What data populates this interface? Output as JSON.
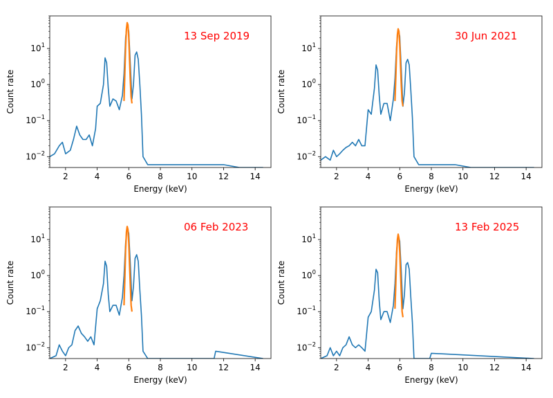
{
  "chart_data": [
    {
      "type": "line",
      "annotation": "13 Sep 2019",
      "xlabel": "Energy (keV)",
      "ylabel": "Count rate",
      "xlim": [
        1.0,
        15.0
      ],
      "ylim": [
        0.005,
        80
      ],
      "yscale": "log",
      "xticks": [
        2,
        4,
        6,
        8,
        10,
        12,
        14
      ],
      "yticks": [
        0.01,
        0.1,
        1,
        10
      ],
      "grid": false,
      "series": [
        {
          "color": "#1f77b4",
          "x": [
            1.0,
            1.3,
            1.6,
            1.8,
            2.0,
            2.3,
            2.5,
            2.7,
            2.9,
            3.1,
            3.3,
            3.5,
            3.7,
            3.9,
            4.0,
            4.2,
            4.4,
            4.5,
            4.6,
            4.7,
            4.8,
            5.0,
            5.2,
            5.4,
            5.6,
            5.7,
            5.8,
            5.9,
            6.0,
            6.1,
            6.2,
            6.3,
            6.4,
            6.5,
            6.6,
            6.7,
            6.8,
            6.9,
            7.2,
            7.5,
            8.0,
            9.0,
            10.0,
            11.0,
            12.0,
            13.0,
            14.5
          ],
          "y": [
            0.01,
            0.012,
            0.02,
            0.025,
            0.012,
            0.015,
            0.03,
            0.07,
            0.04,
            0.03,
            0.03,
            0.04,
            0.02,
            0.06,
            0.25,
            0.3,
            1.0,
            5.5,
            4.0,
            0.8,
            0.25,
            0.4,
            0.35,
            0.2,
            0.5,
            2.0,
            20,
            50,
            30,
            3.5,
            0.4,
            1.0,
            6.5,
            8.0,
            5.0,
            1.0,
            0.15,
            0.01,
            0.006,
            0.006,
            0.006,
            0.006,
            0.006,
            0.006,
            0.006,
            0.005,
            0.005
          ]
        },
        {
          "color": "#ff7f0e",
          "x": [
            5.7,
            5.75,
            5.8,
            5.85,
            5.9,
            5.95,
            6.0,
            6.05,
            6.1,
            6.15,
            6.2
          ],
          "y": [
            0.35,
            2.0,
            11,
            35,
            52,
            45,
            20,
            5,
            1.2,
            0.45,
            0.3
          ]
        }
      ]
    },
    {
      "type": "line",
      "annotation": "30 Jun 2021",
      "xlabel": "Energy (keV)",
      "ylabel": "Count rate",
      "xlim": [
        1.0,
        15.0
      ],
      "ylim": [
        0.005,
        80
      ],
      "yscale": "log",
      "xticks": [
        2,
        4,
        6,
        8,
        10,
        12,
        14
      ],
      "yticks": [
        0.01,
        0.1,
        1,
        10
      ],
      "grid": false,
      "series": [
        {
          "color": "#1f77b4",
          "x": [
            1.0,
            1.3,
            1.6,
            1.8,
            2.0,
            2.2,
            2.4,
            2.6,
            2.8,
            3.0,
            3.2,
            3.4,
            3.6,
            3.8,
            4.0,
            4.2,
            4.4,
            4.5,
            4.6,
            4.7,
            4.8,
            5.0,
            5.2,
            5.4,
            5.6,
            5.7,
            5.8,
            5.9,
            6.0,
            6.1,
            6.2,
            6.3,
            6.4,
            6.5,
            6.6,
            6.7,
            6.8,
            6.9,
            7.2,
            7.5,
            8.0,
            9.0,
            9.5,
            10.5,
            12.0,
            14.5
          ],
          "y": [
            0.008,
            0.01,
            0.008,
            0.015,
            0.01,
            0.012,
            0.015,
            0.018,
            0.02,
            0.025,
            0.02,
            0.03,
            0.02,
            0.02,
            0.2,
            0.15,
            0.8,
            3.5,
            2.5,
            0.5,
            0.15,
            0.3,
            0.3,
            0.1,
            0.4,
            1.5,
            12,
            35,
            22,
            2.5,
            0.25,
            0.6,
            4.0,
            5.0,
            3.5,
            0.7,
            0.12,
            0.01,
            0.006,
            0.006,
            0.006,
            0.006,
            0.006,
            0.005,
            0.005,
            0.005
          ]
        },
        {
          "color": "#ff7f0e",
          "x": [
            5.7,
            5.75,
            5.8,
            5.85,
            5.9,
            5.95,
            6.0,
            6.05,
            6.1,
            6.15,
            6.2
          ],
          "y": [
            0.35,
            1.6,
            8,
            24,
            35,
            30,
            13,
            3.5,
            0.9,
            0.35,
            0.25
          ]
        }
      ]
    },
    {
      "type": "line",
      "annotation": "06 Feb 2023",
      "xlabel": "Energy (keV)",
      "ylabel": "Count rate",
      "xlim": [
        1.0,
        15.0
      ],
      "ylim": [
        0.005,
        80
      ],
      "yscale": "log",
      "xticks": [
        2,
        4,
        6,
        8,
        10,
        12,
        14
      ],
      "yticks": [
        0.01,
        0.1,
        1,
        10
      ],
      "grid": false,
      "series": [
        {
          "color": "#1f77b4",
          "x": [
            1.0,
            1.4,
            1.6,
            1.8,
            2.0,
            2.2,
            2.4,
            2.6,
            2.8,
            3.0,
            3.2,
            3.4,
            3.6,
            3.8,
            4.0,
            4.2,
            4.4,
            4.5,
            4.6,
            4.7,
            4.8,
            5.0,
            5.2,
            5.4,
            5.6,
            5.7,
            5.8,
            5.9,
            6.0,
            6.1,
            6.2,
            6.3,
            6.4,
            6.5,
            6.6,
            6.7,
            6.8,
            6.9,
            7.2,
            7.5,
            8.0,
            11.4,
            11.5,
            14.5
          ],
          "y": [
            0.005,
            0.006,
            0.012,
            0.008,
            0.006,
            0.01,
            0.012,
            0.03,
            0.04,
            0.025,
            0.02,
            0.015,
            0.02,
            0.012,
            0.12,
            0.2,
            0.6,
            2.5,
            1.8,
            0.3,
            0.1,
            0.15,
            0.15,
            0.08,
            0.25,
            1.0,
            8,
            22,
            15,
            2.0,
            0.2,
            0.5,
            3.0,
            3.8,
            2.5,
            0.4,
            0.08,
            0.008,
            0.005,
            0.005,
            0.005,
            0.005,
            0.008,
            0.005
          ]
        },
        {
          "color": "#ff7f0e",
          "x": [
            5.7,
            5.75,
            5.8,
            5.85,
            5.9,
            5.95,
            6.0,
            6.05,
            6.1,
            6.15,
            6.2
          ],
          "y": [
            0.15,
            0.8,
            5,
            16,
            23,
            19,
            8,
            2.0,
            0.5,
            0.15,
            0.1
          ]
        }
      ]
    },
    {
      "type": "line",
      "annotation": "13 Feb 2025",
      "xlabel": "Energy (keV)",
      "ylabel": "Count rate",
      "xlim": [
        1.0,
        15.0
      ],
      "ylim": [
        0.005,
        80
      ],
      "yscale": "log",
      "xticks": [
        2,
        4,
        6,
        8,
        10,
        12,
        14
      ],
      "yticks": [
        0.01,
        0.1,
        1,
        10
      ],
      "grid": false,
      "series": [
        {
          "color": "#1f77b4",
          "x": [
            1.0,
            1.4,
            1.6,
            1.8,
            2.0,
            2.2,
            2.4,
            2.6,
            2.8,
            3.0,
            3.2,
            3.4,
            3.6,
            3.8,
            4.0,
            4.2,
            4.4,
            4.5,
            4.6,
            4.7,
            4.8,
            5.0,
            5.2,
            5.4,
            5.6,
            5.7,
            5.8,
            5.9,
            6.0,
            6.1,
            6.2,
            6.3,
            6.4,
            6.5,
            6.6,
            6.7,
            6.8,
            6.9,
            7.2,
            7.9,
            8.0,
            14.5
          ],
          "y": [
            0.005,
            0.006,
            0.01,
            0.006,
            0.008,
            0.006,
            0.01,
            0.012,
            0.02,
            0.012,
            0.01,
            0.012,
            0.01,
            0.008,
            0.07,
            0.1,
            0.4,
            1.5,
            1.2,
            0.2,
            0.06,
            0.1,
            0.1,
            0.05,
            0.15,
            0.6,
            5,
            13,
            9,
            1.2,
            0.12,
            0.3,
            2.0,
            2.3,
            1.5,
            0.25,
            0.05,
            0.005,
            0.005,
            0.005,
            0.007,
            0.005
          ]
        },
        {
          "color": "#ff7f0e",
          "x": [
            5.7,
            5.75,
            5.8,
            5.85,
            5.9,
            5.95,
            6.0,
            6.05,
            6.1,
            6.15,
            6.2
          ],
          "y": [
            0.12,
            0.6,
            3.5,
            10,
            14,
            11,
            4.5,
            1.2,
            0.3,
            0.1,
            0.07
          ]
        }
      ]
    }
  ]
}
